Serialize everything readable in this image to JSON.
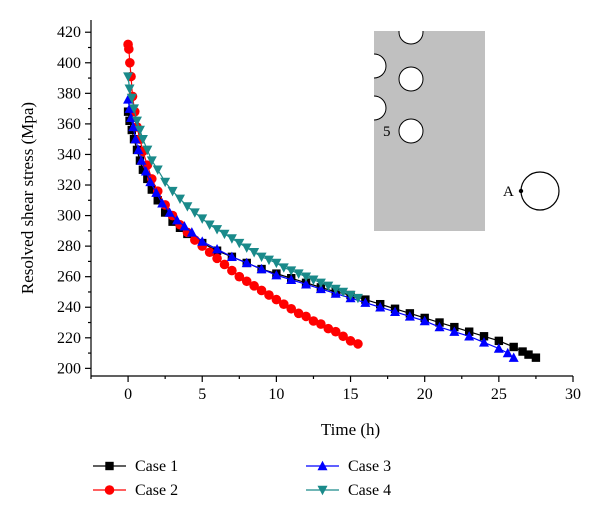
{
  "chart_data": {
    "type": "line",
    "xlabel": "Time (h)",
    "ylabel": "Resolved shear stress (Mpa)",
    "xlim": [
      -2.5,
      30
    ],
    "ylim": [
      195,
      428
    ],
    "xticks": [
      0,
      5,
      10,
      15,
      20,
      25,
      30
    ],
    "yticks": [
      200,
      220,
      240,
      260,
      280,
      300,
      320,
      340,
      360,
      380,
      400,
      420
    ],
    "grid": false,
    "legend_position": "bottom",
    "series": [
      {
        "name": "Case 1",
        "color": "#000000",
        "marker": "square",
        "x": [
          0.0,
          0.1,
          0.25,
          0.4,
          0.6,
          0.8,
          1.0,
          1.3,
          1.6,
          2.0,
          2.5,
          3.0,
          3.5,
          4.0,
          5.0,
          6.0,
          7.0,
          8.0,
          9.0,
          10.0,
          11.0,
          12.0,
          13.0,
          14.0,
          15.0,
          16.0,
          17.0,
          18.0,
          19.0,
          20.0,
          21.0,
          22.0,
          23.0,
          24.0,
          25.0,
          26.0,
          26.6,
          27.0,
          27.5
        ],
        "y": [
          368,
          362,
          356,
          350,
          343,
          336,
          330,
          324,
          317,
          310,
          302,
          296,
          292,
          288,
          282,
          277,
          273,
          269,
          265,
          262,
          259,
          256,
          253,
          250,
          248,
          245,
          242,
          239,
          236,
          233,
          230,
          227,
          224,
          221,
          218,
          214,
          211,
          209,
          207
        ]
      },
      {
        "name": "Case 2",
        "color": "#ff0000",
        "marker": "circle",
        "x": [
          0.0,
          0.05,
          0.12,
          0.2,
          0.3,
          0.45,
          0.6,
          0.8,
          1.0,
          1.3,
          1.6,
          2.0,
          2.5,
          3.0,
          3.5,
          4.0,
          4.5,
          5.0,
          5.5,
          6.0,
          6.5,
          7.0,
          7.5,
          8.0,
          8.5,
          9.0,
          9.5,
          10.0,
          10.5,
          11.0,
          11.5,
          12.0,
          12.5,
          13.0,
          13.5,
          14.0,
          14.5,
          15.0,
          15.5
        ],
        "y": [
          412,
          409,
          400,
          391,
          378,
          368,
          358,
          350,
          342,
          333,
          324,
          316,
          307,
          300,
          294,
          289,
          284,
          280,
          276,
          272,
          268,
          264,
          260,
          257,
          254,
          251,
          248,
          245,
          242,
          239,
          236,
          234,
          231,
          229,
          226,
          224,
          221,
          218,
          216
        ]
      },
      {
        "name": "Case 3",
        "color": "#0000ff",
        "marker": "triangle-up",
        "x": [
          0.0,
          0.1,
          0.2,
          0.35,
          0.5,
          0.7,
          0.9,
          1.2,
          1.5,
          1.9,
          2.3,
          2.8,
          3.3,
          3.8,
          4.3,
          5.0,
          6.0,
          7.0,
          8.0,
          9.0,
          10.0,
          11.0,
          12.0,
          13.0,
          14.0,
          15.0,
          16.0,
          17.0,
          18.0,
          19.0,
          20.0,
          21.0,
          22.0,
          23.0,
          24.0,
          25.0,
          25.6,
          26.0
        ],
        "y": [
          376,
          370,
          364,
          358,
          350,
          343,
          336,
          329,
          322,
          315,
          308,
          302,
          297,
          293,
          289,
          283,
          278,
          273,
          269,
          265,
          261,
          258,
          255,
          252,
          249,
          246,
          243,
          240,
          237,
          234,
          231,
          227,
          224,
          221,
          217,
          213,
          210,
          207
        ]
      },
      {
        "name": "Case 4",
        "color": "#1a8a8a",
        "marker": "triangle-down",
        "x": [
          0.0,
          0.1,
          0.25,
          0.4,
          0.6,
          0.8,
          1.0,
          1.3,
          1.6,
          2.0,
          2.5,
          3.0,
          3.5,
          4.0,
          4.5,
          5.0,
          5.5,
          6.0,
          6.5,
          7.0,
          7.5,
          8.0,
          8.5,
          9.0,
          9.5,
          10.0,
          10.5,
          11.0,
          11.5,
          12.0,
          12.5,
          13.0,
          13.5,
          14.0,
          14.5,
          15.0,
          15.5
        ],
        "y": [
          391,
          383,
          377,
          370,
          362,
          356,
          350,
          343,
          336,
          330,
          322,
          316,
          311,
          306,
          302,
          298,
          294,
          291,
          288,
          285,
          282,
          279,
          276,
          273,
          271,
          269,
          266,
          264,
          262,
          260,
          258,
          256,
          254,
          252,
          250,
          248,
          246
        ]
      }
    ],
    "inset": {
      "labels": [
        "5",
        "A"
      ]
    }
  }
}
